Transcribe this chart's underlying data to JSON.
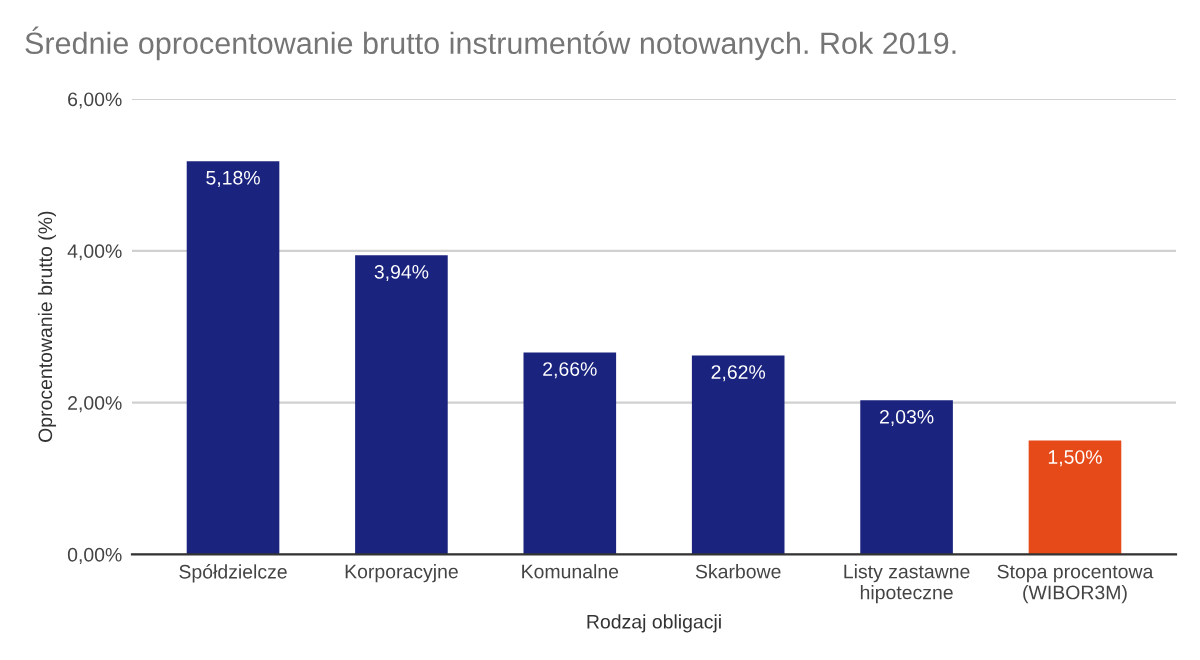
{
  "chart_data": {
    "type": "bar",
    "title": "Średnie oprocentowanie brutto instrumentów notowanych. Rok 2019.",
    "xlabel": "Rodzaj obligacji",
    "ylabel": "Oprocentowanie brutto (%)",
    "categories": [
      "Spółdzielcze",
      "Korporacyjne",
      "Komunalne",
      "Skarbowe",
      "Listy zastawne\nhipoteczne",
      "Stopa procentowa\n(WIBOR3M)"
    ],
    "values": [
      5.18,
      3.94,
      2.66,
      2.62,
      2.03,
      1.5
    ],
    "value_labels": [
      "5,18%",
      "3,94%",
      "2,66%",
      "2,62%",
      "2,03%",
      "1,50%"
    ],
    "colors": [
      "#1a237e",
      "#1a237e",
      "#1a237e",
      "#1a237e",
      "#1a237e",
      "#e64a19"
    ],
    "ylim": [
      0,
      6
    ],
    "yticks": [
      {
        "value": 0,
        "label": "0,00%"
      },
      {
        "value": 2,
        "label": "2,00%"
      },
      {
        "value": 4,
        "label": "4,00%"
      },
      {
        "value": 6,
        "label": "6,00%"
      }
    ],
    "grid": "y"
  }
}
